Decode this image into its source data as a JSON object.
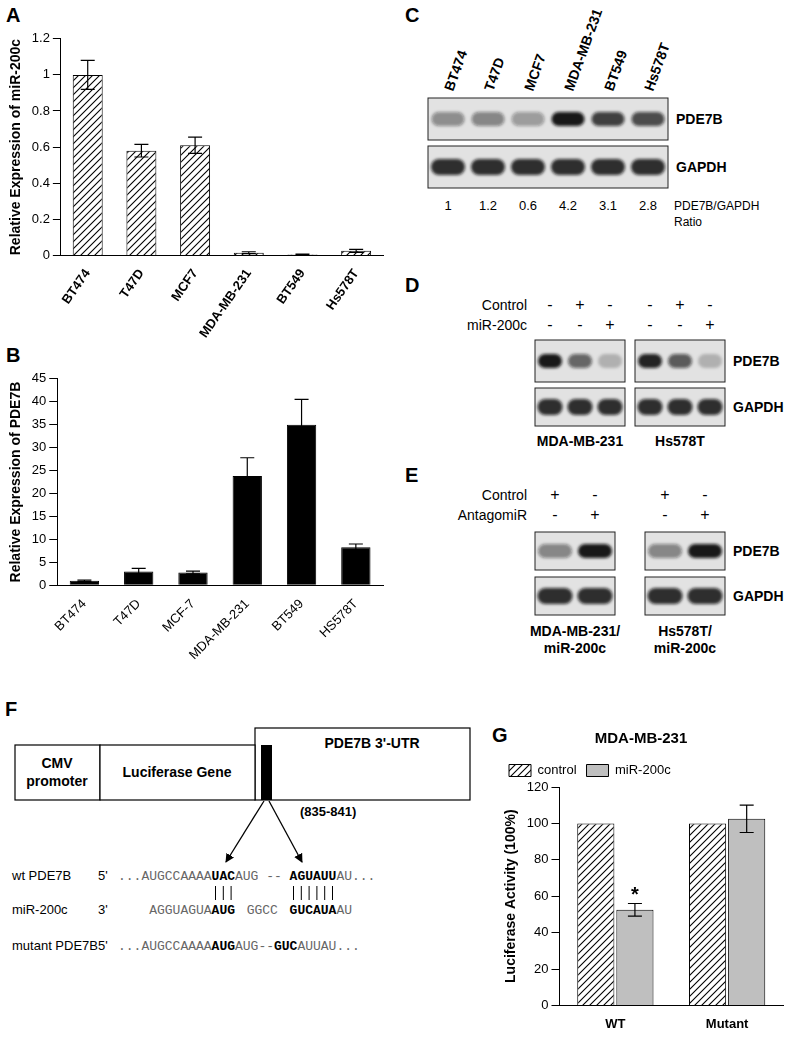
{
  "chart_data": [
    {
      "panel": "A",
      "type": "bar",
      "categories": [
        "BT474",
        "T47D",
        "MCF7",
        "MDA-MB-231",
        "BT549",
        "Hs578T"
      ],
      "values": [
        1,
        0.58,
        0.61,
        0.015,
        0.005,
        0.025
      ],
      "errors": [
        0.08,
        0.035,
        0.045,
        0.005,
        0.002,
        0.008
      ],
      "color": "#000000",
      "y_label": "Relative Expression of miR-200c",
      "ylim": [
        0,
        1.2
      ],
      "yticks": [
        0,
        0.2,
        0.4,
        0.6,
        0.8,
        1,
        1.2
      ],
      "grid": false
    },
    {
      "panel": "B",
      "type": "bar",
      "categories": [
        "BT474",
        "T47D",
        "MCF-7",
        "MDA-MB-231",
        "BT549",
        "HS578T"
      ],
      "values": [
        1,
        3,
        2.8,
        23.8,
        35,
        8.3
      ],
      "errors": [
        0.15,
        0.7,
        0.3,
        4,
        5.5,
        0.7
      ],
      "color": "#000000",
      "y_label": "Relative Expression of PDE7B",
      "ylim": [
        0,
        45
      ],
      "yticks": [
        0,
        5,
        10,
        15,
        20,
        25,
        30,
        35,
        40,
        45
      ],
      "grid": false
    },
    {
      "panel": "G",
      "type": "bar",
      "title": "MDA-MB-231",
      "categories": [
        "WT",
        "Mutant"
      ],
      "series": [
        {
          "name": "control",
          "color": "#000000",
          "values": [
            100,
            100
          ]
        },
        {
          "name": "miR-200c",
          "color": "#bfbfbf",
          "values": [
            52.5,
            102.5
          ],
          "errors": [
            3.5,
            7.5
          ]
        }
      ],
      "annotations": [
        {
          "text": "*",
          "category": "WT",
          "series": "miR-200c"
        }
      ],
      "y_label": "Luciferase Activity (100%)",
      "legend": "top-left",
      "ylim": [
        0,
        120
      ],
      "yticks": [
        0,
        20,
        40,
        60,
        80,
        100,
        120
      ],
      "grid": false
    }
  ],
  "blot_C": {
    "panel": "C",
    "lanes": [
      "BT474",
      "T47D",
      "MCF7",
      "MDA-MB-231",
      "BT549",
      "Hs578T"
    ],
    "bands": [
      "PDE7B",
      "GAPDH"
    ],
    "ratios": [
      1,
      1.2,
      0.6,
      4.2,
      3.1,
      2.8
    ],
    "ratio_label": [
      "PDE7B/GAPDH",
      "Ratio"
    ]
  },
  "blot_D": {
    "panel": "D",
    "conditions": [
      {
        "label": "Control",
        "marks": [
          "-",
          "+",
          "-",
          "-",
          "+",
          "-"
        ]
      },
      {
        "label": "miR-200c",
        "marks": [
          "-",
          "-",
          "+",
          "-",
          "-",
          "+"
        ]
      }
    ],
    "groups": [
      [
        "MDA-MB-231"
      ],
      [
        "Hs578T"
      ]
    ],
    "bands": [
      "PDE7B",
      "GAPDH"
    ]
  },
  "blot_E": {
    "panel": "E",
    "conditions": [
      {
        "label": "Control",
        "marks": [
          "+",
          "-",
          "+",
          "-"
        ]
      },
      {
        "label": "AntagomiR",
        "marks": [
          "-",
          "+",
          "-",
          "+"
        ]
      }
    ],
    "groups": [
      [
        "MDA-MB-231/",
        "miR-200c"
      ],
      [
        "Hs578T/",
        "miR-200c"
      ]
    ],
    "bands": [
      "PDE7B",
      "GAPDH"
    ]
  },
  "diagram": {
    "panel": "F",
    "promoter": [
      "CMV",
      "promoter"
    ],
    "reporter": "Luciferase Gene",
    "utr": "PDE7B 3'-UTR",
    "site": "(835-841)",
    "sequences": [
      {
        "label": "wt PDE7B",
        "end": "5'",
        "segments": [
          {
            "text": "...AUGCCAAAA",
            "bold": false
          },
          {
            "text": "UAC",
            "bold": true
          },
          {
            "text": "AUG -- ",
            "bold": false
          },
          {
            "text": "AGUAUU",
            "bold": true
          },
          {
            "text": "AU...",
            "bold": false
          }
        ]
      },
      {
        "label": "miR-200c",
        "end": "3'",
        "segments": [
          {
            "text": "AGGUAGUA",
            "bold": false
          },
          {
            "text": "AUG",
            "bold": true
          },
          {
            "text": "GGCC",
            "bold": false
          },
          {
            "text": "GUCAUA",
            "bold": true
          },
          {
            "text": "AU",
            "bold": false
          }
        ]
      },
      {
        "label": "mutant PDE7B",
        "end": "5'",
        "segments": [
          {
            "text": "...AUGCCAAAA",
            "bold": false
          },
          {
            "text": "AUG",
            "bold": true
          },
          {
            "text": "AUG--",
            "bold": false
          },
          {
            "text": "GUC",
            "bold": true
          },
          {
            "text": "AUUAU...",
            "bold": false
          }
        ]
      }
    ]
  }
}
